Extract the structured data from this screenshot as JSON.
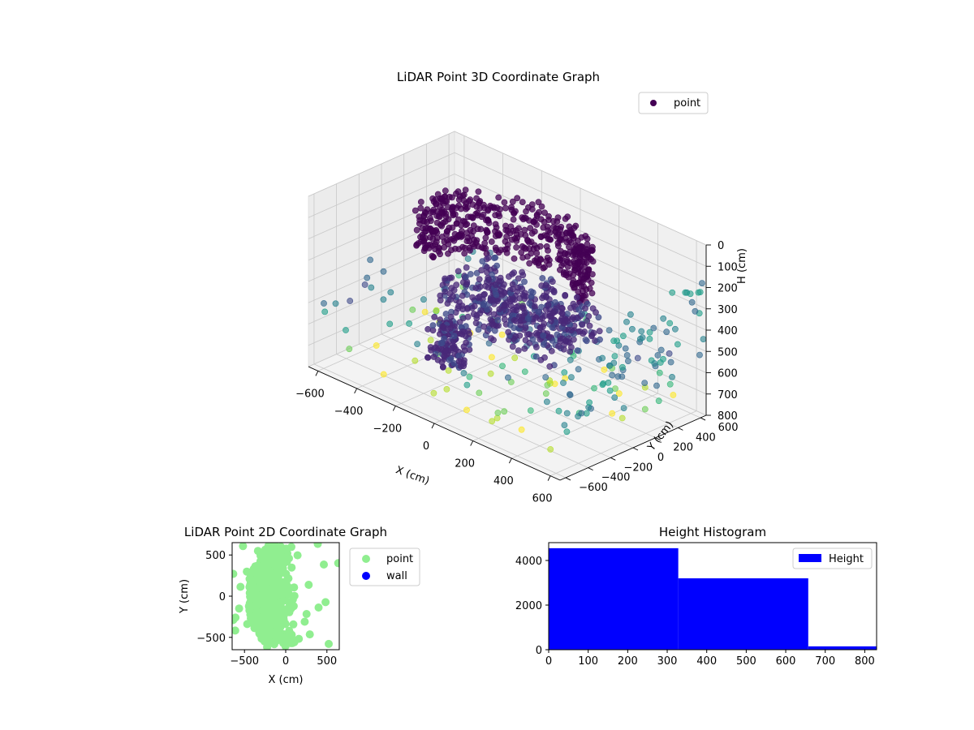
{
  "chart_data": [
    {
      "type": "scatter",
      "projection": "3d",
      "title": "LiDAR Point 3D Coordinate Graph",
      "xlabel": "X (cm)",
      "ylabel": "Y (cm)",
      "zlabel": "H (cm)",
      "xticks": [
        "−600",
        "−400",
        "−200",
        "0",
        "200",
        "400",
        "600"
      ],
      "yticks": [
        "−600",
        "−400",
        "−200",
        "0",
        "200",
        "400",
        "600"
      ],
      "zticks": [
        "0",
        "100",
        "200",
        "300",
        "400",
        "500",
        "600",
        "700",
        "800"
      ],
      "xlim": [
        -650,
        650
      ],
      "ylim": [
        -650,
        650
      ],
      "zlim": [
        0,
        800
      ],
      "z_inverted": true,
      "colormap": "viridis",
      "grid": true,
      "legend": {
        "position": "top-right",
        "entries": [
          {
            "label": "point",
            "color": "#440154"
          }
        ]
      },
      "series": [
        {
          "name": "point"
        }
      ]
    },
    {
      "type": "scatter",
      "title": "LiDAR Point 2D Coordinate Graph",
      "xlabel": "X (cm)",
      "ylabel": "Y (cm)",
      "xticks": [
        "−500",
        "0",
        "500"
      ],
      "yticks": [
        "−500",
        "0",
        "500"
      ],
      "xlim": [
        -650,
        650
      ],
      "ylim": [
        -650,
        650
      ],
      "legend": {
        "position": "right-outside",
        "entries": [
          {
            "label": "point",
            "color": "#90ee90"
          },
          {
            "label": "wall",
            "color": "#0000ff"
          }
        ]
      },
      "series": [
        {
          "name": "point",
          "color": "#90ee90"
        },
        {
          "name": "wall",
          "color": "#0000ff",
          "values": []
        }
      ]
    },
    {
      "type": "bar",
      "subtype": "histogram",
      "title": "Height Histogram",
      "xlabel": "",
      "ylabel": "",
      "xticks": [
        "0",
        "100",
        "200",
        "300",
        "400",
        "500",
        "600",
        "700",
        "800"
      ],
      "yticks": [
        "0",
        "2000",
        "4000"
      ],
      "xlim": [
        0,
        830
      ],
      "ylim": [
        0,
        4800
      ],
      "bins": [
        {
          "start": 0,
          "end": 328,
          "count": 4550
        },
        {
          "start": 328,
          "end": 657,
          "count": 3200
        },
        {
          "start": 657,
          "end": 830,
          "count": 150
        }
      ],
      "color": "#0000ff",
      "legend": {
        "position": "top-right",
        "entries": [
          {
            "label": "Height",
            "color": "#0000ff"
          }
        ]
      },
      "series": [
        {
          "name": "Height"
        }
      ]
    }
  ]
}
